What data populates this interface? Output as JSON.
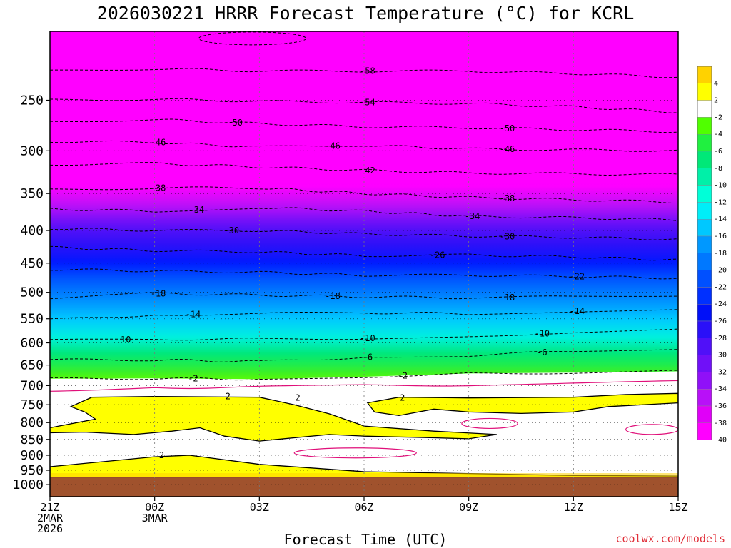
{
  "chart_data": {
    "type": "heatmap",
    "title": "2026030221 HRRR Forecast Temperature (°C) for KCRL",
    "xlabel": "Forecast Time (UTC)",
    "credit": "coolwx.com/models",
    "y_axis": {
      "scale": "log",
      "reversed": true,
      "range": [
        195,
        1045
      ],
      "ticks": [
        250,
        300,
        350,
        400,
        450,
        500,
        550,
        600,
        650,
        700,
        750,
        800,
        850,
        900,
        950,
        1000
      ]
    },
    "x_axis": {
      "range": [
        0,
        18
      ],
      "ticks": [
        {
          "hour": 0,
          "lines": [
            "21Z",
            "2MAR",
            "2026"
          ]
        },
        {
          "hour": 3,
          "lines": [
            "00Z",
            "3MAR"
          ]
        },
        {
          "hour": 6,
          "lines": [
            "03Z"
          ]
        },
        {
          "hour": 9,
          "lines": [
            "06Z"
          ]
        },
        {
          "hour": 12,
          "lines": [
            "09Z"
          ]
        },
        {
          "hour": 15,
          "lines": [
            "12Z"
          ]
        },
        {
          "hour": 18,
          "lines": [
            "15Z"
          ]
        }
      ]
    },
    "grid": true,
    "colorbar": {
      "labels": [
        "4",
        "2",
        "-2",
        "-4",
        "-6",
        "-8",
        "-10",
        "-12",
        "-14",
        "-16",
        "-18",
        "-20",
        "-22",
        "-24",
        "-26",
        "-28",
        "-30",
        "-32",
        "-34",
        "-36",
        "-38",
        "-40"
      ],
      "colors": [
        "#ffd200",
        "#ffff00",
        "#ffffff",
        "#50ff00",
        "#20f040",
        "#00e878",
        "#00f0a8",
        "#00ffd8",
        "#00eef8",
        "#00c8ff",
        "#0098ff",
        "#0078ff",
        "#0050ff",
        "#0030ff",
        "#0010f8",
        "#2a10f8",
        "#5010f8",
        "#7010f8",
        "#9010f8",
        "#b810f8",
        "#e000f8",
        "#ff00ff"
      ]
    },
    "temperature_levels": [
      {
        "p": 220,
        "t": -60
      },
      {
        "p": 250,
        "t": -55
      },
      {
        "p": 300,
        "t": -46
      },
      {
        "p": 340,
        "t": -40
      },
      {
        "p": 370,
        "t": -35
      },
      {
        "p": 400,
        "t": -30
      },
      {
        "p": 440,
        "t": -26
      },
      {
        "p": 500,
        "t": -19
      },
      {
        "p": 550,
        "t": -14
      },
      {
        "p": 600,
        "t": -10
      },
      {
        "p": 650,
        "t": -6
      },
      {
        "p": 690,
        "t": -2
      },
      {
        "p": 720,
        "t": 1
      },
      {
        "p": 800,
        "t": 2
      },
      {
        "p": 950,
        "t": 2.5
      },
      {
        "p": 975,
        "t": 4
      }
    ],
    "contours": [
      {
        "value": "-58",
        "p": [
          [
            0,
            225
          ],
          [
            3,
            223
          ],
          [
            6,
            225
          ],
          [
            9,
            225
          ],
          [
            12,
            225
          ],
          [
            15,
            227
          ],
          [
            18,
            230
          ]
        ],
        "labels": [
          9.1
        ]
      },
      {
        "value": "-54",
        "p": [
          [
            0,
            250
          ],
          [
            3,
            249
          ],
          [
            6,
            251
          ],
          [
            9,
            252
          ],
          [
            12,
            253
          ],
          [
            15,
            256
          ],
          [
            18,
            261
          ]
        ],
        "labels": [
          9.1
        ]
      },
      {
        "value": "-50",
        "p": [
          [
            0,
            270
          ],
          [
            3,
            268
          ],
          [
            6,
            272
          ],
          [
            9,
            275
          ],
          [
            12,
            276
          ],
          [
            15,
            278
          ],
          [
            18,
            280
          ]
        ],
        "labels": [
          5.3,
          13.1
        ]
      },
      {
        "value": "-46",
        "p": [
          [
            0,
            290
          ],
          [
            3,
            291
          ],
          [
            6,
            296
          ],
          [
            9,
            294
          ],
          [
            12,
            298
          ],
          [
            15,
            299
          ],
          [
            18,
            300
          ]
        ],
        "labels": [
          3.1,
          8.1,
          13.1
        ]
      },
      {
        "value": "-42",
        "p": [
          [
            0,
            315
          ],
          [
            3,
            314
          ],
          [
            6,
            318
          ],
          [
            9,
            322
          ],
          [
            12,
            325
          ],
          [
            15,
            326
          ],
          [
            18,
            327
          ]
        ],
        "labels": [
          9.1
        ]
      },
      {
        "value": "-38",
        "p": [
          [
            0,
            345
          ],
          [
            3,
            343
          ],
          [
            6,
            343
          ],
          [
            9,
            350
          ],
          [
            12,
            355
          ],
          [
            15,
            358
          ],
          [
            18,
            361
          ]
        ],
        "labels": [
          3.1,
          13.1
        ]
      },
      {
        "value": "-34",
        "p": [
          [
            0,
            370
          ],
          [
            3,
            373
          ],
          [
            6,
            368
          ],
          [
            9,
            373
          ],
          [
            12,
            380
          ],
          [
            15,
            382
          ],
          [
            18,
            385
          ]
        ],
        "labels": [
          4.2,
          12.1
        ]
      },
      {
        "value": "-30",
        "p": [
          [
            0,
            397
          ],
          [
            3,
            400
          ],
          [
            6,
            400
          ],
          [
            9,
            405
          ],
          [
            12,
            408
          ],
          [
            15,
            410
          ],
          [
            18,
            413
          ]
        ],
        "labels": [
          5.2,
          13.1
        ]
      },
      {
        "value": "-26",
        "p": [
          [
            0,
            425
          ],
          [
            3,
            430
          ],
          [
            6,
            432
          ],
          [
            9,
            438
          ],
          [
            12,
            437
          ],
          [
            15,
            440
          ],
          [
            18,
            445
          ]
        ],
        "labels": [
          11.1
        ]
      },
      {
        "value": "-22",
        "p": [
          [
            0,
            460
          ],
          [
            3,
            463
          ],
          [
            6,
            465
          ],
          [
            9,
            470
          ],
          [
            12,
            470
          ],
          [
            15,
            472
          ],
          [
            18,
            475
          ]
        ],
        "labels": [
          15.1
        ]
      },
      {
        "value": "-18",
        "p": [
          [
            0,
            510
          ],
          [
            3,
            502
          ],
          [
            6,
            505
          ],
          [
            9,
            508
          ],
          [
            12,
            510
          ],
          [
            15,
            508
          ],
          [
            18,
            505
          ]
        ],
        "labels": [
          3.1,
          8.1,
          13.1
        ]
      },
      {
        "value": "-14",
        "p": [
          [
            0,
            552
          ],
          [
            3,
            542
          ],
          [
            6,
            540
          ],
          [
            9,
            538
          ],
          [
            12,
            540
          ],
          [
            15,
            535
          ],
          [
            18,
            530
          ]
        ],
        "labels": [
          4.1,
          15.1
        ]
      },
      {
        "value": "-10",
        "p": [
          [
            0,
            595
          ],
          [
            3,
            592
          ],
          [
            6,
            592
          ],
          [
            9,
            590
          ],
          [
            12,
            585
          ],
          [
            15,
            578
          ],
          [
            18,
            572
          ]
        ],
        "labels": [
          2.1,
          9.1,
          14.1
        ]
      },
      {
        "value": "-6",
        "p": [
          [
            0,
            638
          ],
          [
            3,
            638
          ],
          [
            6,
            642
          ],
          [
            9,
            632
          ],
          [
            12,
            628
          ],
          [
            15,
            618
          ],
          [
            18,
            612
          ]
        ],
        "labels": [
          9.1,
          14.1
        ]
      },
      {
        "value": "-2",
        "p": [
          [
            0,
            683
          ],
          [
            3,
            682
          ],
          [
            6,
            684
          ],
          [
            9,
            678
          ],
          [
            12,
            670
          ],
          [
            15,
            668
          ],
          [
            18,
            665
          ]
        ],
        "labels": [
          4.1,
          10.1
        ]
      }
    ],
    "freezing_contours": [
      {
        "value": "0",
        "p": [
          [
            0,
            712
          ],
          [
            3,
            705
          ],
          [
            6,
            704
          ],
          [
            9,
            700
          ],
          [
            12,
            698
          ],
          [
            15,
            694
          ],
          [
            18,
            690
          ]
        ]
      }
    ],
    "two_degree_regions": [
      {
        "points": [
          [
            0.6,
            755
          ],
          [
            1.2,
            730
          ],
          [
            3,
            728
          ],
          [
            6,
            730
          ],
          [
            7,
            750
          ],
          [
            8,
            775
          ],
          [
            9,
            810
          ],
          [
            11,
            825
          ],
          [
            12.8,
            835
          ],
          [
            12,
            848
          ],
          [
            11,
            845
          ],
          [
            9,
            840
          ],
          [
            8,
            835
          ],
          [
            6,
            855
          ],
          [
            5,
            840
          ],
          [
            4.3,
            815
          ],
          [
            3.5,
            825
          ],
          [
            2.4,
            835
          ],
          [
            1,
            828
          ],
          [
            0,
            830
          ],
          [
            0,
            815
          ],
          [
            1.3,
            790
          ],
          [
            1,
            770
          ]
        ],
        "labels": [
          [
            5.1,
            2.7
          ]
        ]
      },
      {
        "points": [
          [
            9.1,
            745
          ],
          [
            10,
            730
          ],
          [
            12,
            732
          ],
          [
            15,
            730
          ],
          [
            16.5,
            723
          ],
          [
            18,
            720
          ],
          [
            18,
            745
          ],
          [
            16,
            755
          ],
          [
            15,
            770
          ],
          [
            13.5,
            774
          ],
          [
            12,
            770
          ],
          [
            11,
            762
          ],
          [
            10,
            780
          ],
          [
            9.3,
            770
          ]
        ],
        "labels": [
          [
            7.1,
            16.1
          ],
          [
            10.1,
            14.8
          ]
        ]
      },
      {
        "points": [
          [
            0,
            938
          ],
          [
            3,
            905
          ],
          [
            4,
            900
          ],
          [
            6,
            930
          ],
          [
            9,
            955
          ],
          [
            15,
            968
          ],
          [
            18,
            970
          ],
          [
            18,
            975
          ],
          [
            0,
            975
          ]
        ],
        "labels": [
          [
            3.2
          ]
        ]
      }
    ]
  }
}
